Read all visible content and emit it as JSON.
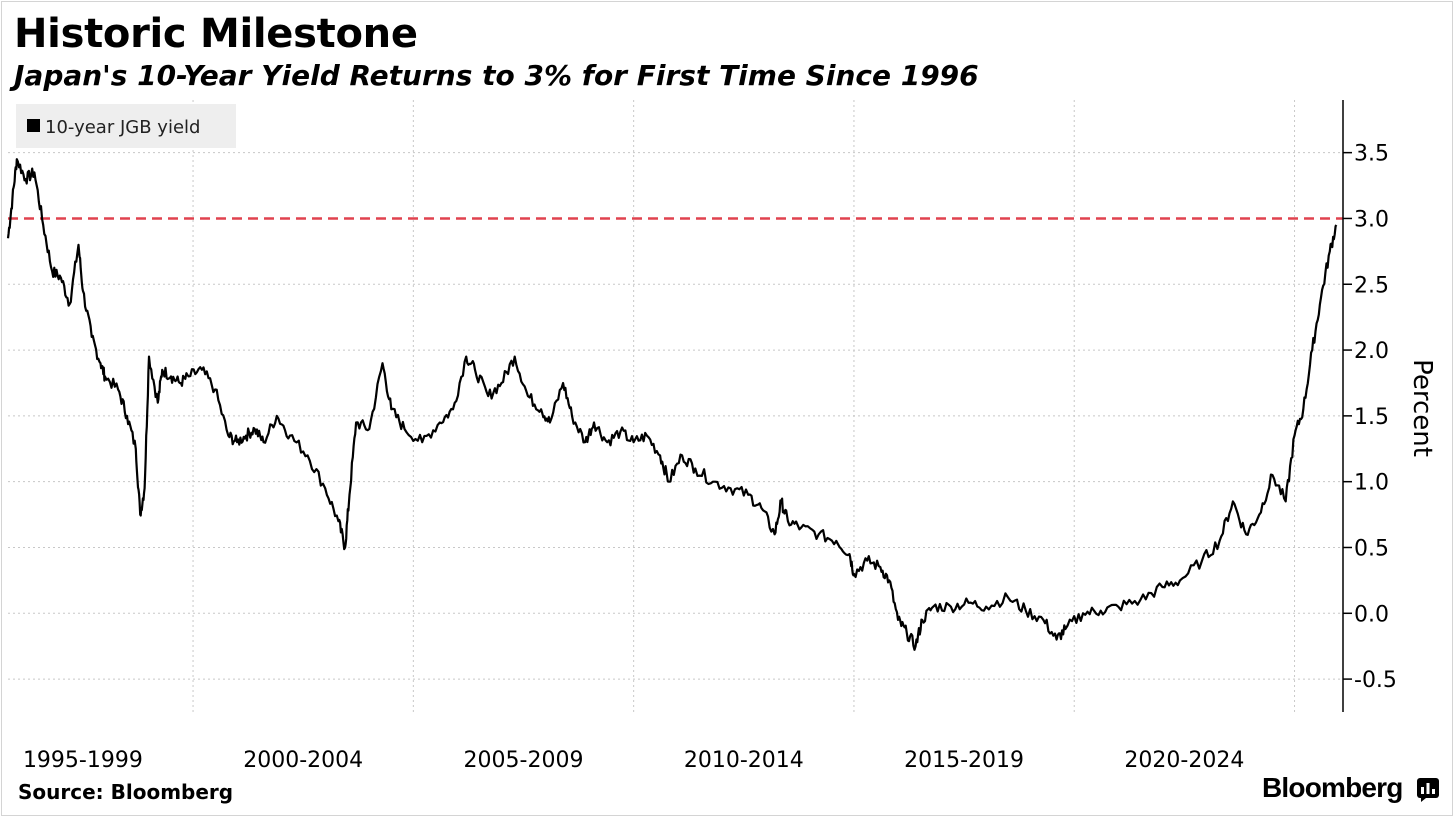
{
  "header": {
    "title": "Historic Milestone",
    "subtitle": "Japan's 10-Year Yield Returns to 3% for First Time Since 1996"
  },
  "footer": {
    "source": "Source: Bloomberg",
    "brand": "Bloomberg",
    "brand_icon": "bloomberg-terminal-icon"
  },
  "colors": {
    "series": "#000000",
    "reference_line": "#e0424f",
    "grid": "#c8c8c8",
    "legend_bg": "#eeeeee",
    "background": "#ffffff"
  },
  "chart_data": {
    "type": "line",
    "title": "Historic Milestone",
    "subtitle": "Japan's 10-Year Yield Returns to 3% for First Time Since 1996",
    "ylabel": "Percent",
    "xlabel": "",
    "legend": {
      "entries": [
        "10-year JGB yield"
      ],
      "position": "top-left"
    },
    "y_axis": {
      "position": "right",
      "ticks": [
        -0.5,
        0.0,
        0.5,
        1.0,
        1.5,
        2.0,
        2.5,
        3.0,
        3.5
      ],
      "tick_labels": [
        "-0.5",
        "0.0",
        "0.5",
        "1.0",
        "1.5",
        "2.0",
        "2.5",
        "3.0",
        "3.5"
      ],
      "ylim": [
        -0.75,
        3.9
      ]
    },
    "x_axis": {
      "categories": [
        "1995-1999",
        "2000-2004",
        "2005-2009",
        "2010-2014",
        "2015-2019",
        "2020-2024"
      ],
      "xlim": [
        1995.8,
        2026.1
      ]
    },
    "grid": true,
    "reference_lines": [
      {
        "y": 3.0,
        "style": "dashed",
        "color": "#e0424f"
      }
    ],
    "series": [
      {
        "name": "10-year JGB yield",
        "color": "#000000",
        "x": [
          1995.8,
          1995.9,
          1996.0,
          1996.2,
          1996.4,
          1996.6,
          1996.8,
          1997.0,
          1997.2,
          1997.4,
          1997.5,
          1997.7,
          1997.9,
          1998.0,
          1998.3,
          1998.5,
          1998.7,
          1998.8,
          1998.9,
          1999.0,
          1999.2,
          1999.3,
          1999.5,
          1999.7,
          1999.9,
          2000.2,
          2000.5,
          2000.8,
          2001.0,
          2001.2,
          2001.4,
          2001.6,
          2001.9,
          2002.2,
          2002.6,
          2003.0,
          2003.3,
          2003.45,
          2003.55,
          2003.7,
          2004.0,
          2004.3,
          2004.5,
          2004.8,
          2005.2,
          2005.6,
          2005.9,
          2006.2,
          2006.4,
          2006.7,
          2007.0,
          2007.3,
          2007.6,
          2007.9,
          2008.1,
          2008.4,
          2008.6,
          2008.9,
          2009.1,
          2009.4,
          2009.7,
          2010.0,
          2010.3,
          2010.6,
          2010.8,
          2011.1,
          2011.4,
          2011.8,
          2012.2,
          2012.6,
          2012.9,
          2013.2,
          2013.35,
          2013.5,
          2013.8,
          2014.2,
          2014.6,
          2014.9,
          2015.0,
          2015.3,
          2015.6,
          2015.8,
          2016.0,
          2016.2,
          2016.4,
          2016.55,
          2016.8,
          2017.2,
          2017.6,
          2018.0,
          2018.5,
          2018.9,
          2019.3,
          2019.6,
          2019.8,
          2020.2,
          2020.6,
          2021.0,
          2021.5,
          2022.0,
          2022.4,
          2022.9,
          2023.3,
          2023.6,
          2023.9,
          2024.2,
          2024.5,
          2024.8,
          2025.0,
          2025.2,
          2025.4,
          2025.6,
          2025.8,
          2025.95
        ],
        "values": [
          2.85,
          3.15,
          3.45,
          3.3,
          3.35,
          2.95,
          2.6,
          2.55,
          2.35,
          2.8,
          2.45,
          2.1,
          1.9,
          1.8,
          1.7,
          1.5,
          1.25,
          0.75,
          0.95,
          1.95,
          1.6,
          1.85,
          1.8,
          1.75,
          1.8,
          1.85,
          1.7,
          1.35,
          1.3,
          1.35,
          1.4,
          1.3,
          1.5,
          1.35,
          1.2,
          0.95,
          0.7,
          0.5,
          0.9,
          1.45,
          1.4,
          1.9,
          1.55,
          1.4,
          1.3,
          1.45,
          1.55,
          1.95,
          1.85,
          1.65,
          1.75,
          1.95,
          1.65,
          1.55,
          1.45,
          1.75,
          1.5,
          1.3,
          1.45,
          1.3,
          1.38,
          1.3,
          1.35,
          1.2,
          1.0,
          1.2,
          1.1,
          1.0,
          0.95,
          0.9,
          0.8,
          0.6,
          0.85,
          0.7,
          0.65,
          0.6,
          0.55,
          0.45,
          0.3,
          0.4,
          0.35,
          0.25,
          -0.05,
          -0.15,
          -0.25,
          -0.05,
          0.05,
          0.05,
          0.08,
          0.05,
          0.12,
          0.02,
          -0.05,
          -0.2,
          -0.12,
          0.0,
          0.02,
          0.05,
          0.1,
          0.2,
          0.25,
          0.4,
          0.55,
          0.85,
          0.6,
          0.75,
          1.05,
          0.85,
          1.35,
          1.55,
          2.0,
          2.4,
          2.75,
          2.95
        ]
      }
    ]
  }
}
